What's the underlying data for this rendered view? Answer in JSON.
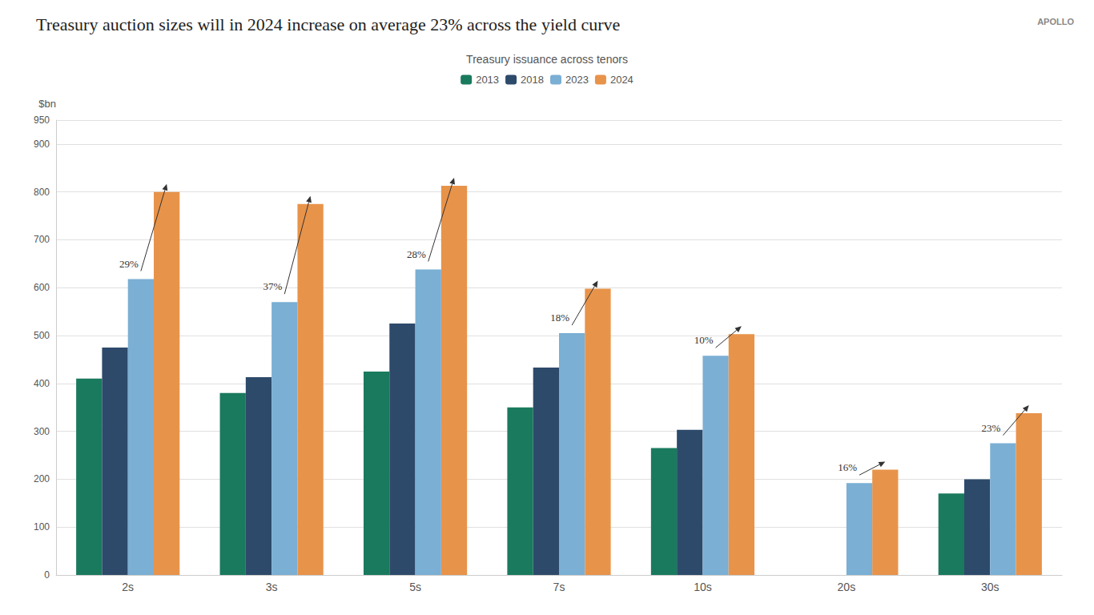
{
  "chart_data": {
    "type": "bar",
    "title": "Treasury auction sizes will in 2024 increase on average 23% across the yield curve",
    "subtitle": "Treasury issuance across tenors",
    "ylabel": "$bn",
    "watermark": "APOLLO",
    "categories": [
      "2s",
      "3s",
      "5s",
      "7s",
      "10s",
      "20s",
      "30s"
    ],
    "series": [
      {
        "name": "2013",
        "color": "#1a7a5e",
        "values": [
          410,
          380,
          425,
          350,
          265,
          0,
          170
        ]
      },
      {
        "name": "2018",
        "color": "#2d4a6b",
        "values": [
          475,
          413,
          525,
          433,
          303,
          0,
          200
        ]
      },
      {
        "name": "2023",
        "color": "#7bafd4",
        "values": [
          618,
          570,
          638,
          505,
          458,
          192,
          275
        ]
      },
      {
        "name": "2024",
        "color": "#e8934a",
        "values": [
          800,
          775,
          813,
          598,
          503,
          220,
          338
        ]
      }
    ],
    "annotations": [
      {
        "category": "2s",
        "label": "29%"
      },
      {
        "category": "3s",
        "label": "37%"
      },
      {
        "category": "5s",
        "label": "28%"
      },
      {
        "category": "7s",
        "label": "18%"
      },
      {
        "category": "10s",
        "label": "10%"
      },
      {
        "category": "20s",
        "label": "16%"
      },
      {
        "category": "30s",
        "label": "23%"
      }
    ],
    "ylim": [
      0,
      950
    ],
    "yticks": [
      0,
      100,
      200,
      300,
      400,
      500,
      600,
      700,
      800,
      900
    ],
    "grid": true,
    "legend": "top"
  }
}
